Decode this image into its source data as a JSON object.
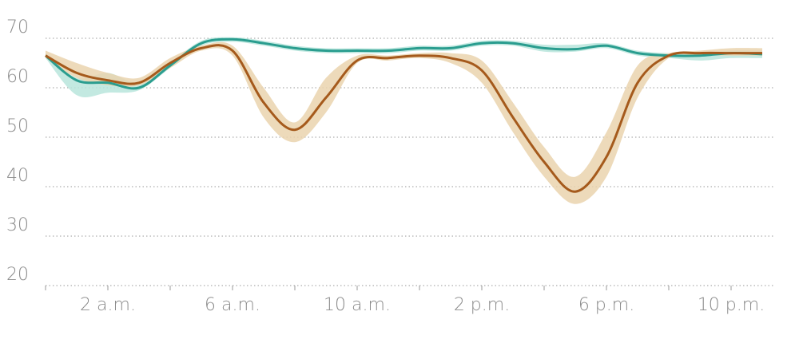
{
  "chart_data": {
    "type": "line",
    "x": [
      0,
      1,
      2,
      3,
      4,
      5,
      6,
      7,
      8,
      9,
      10,
      11,
      12,
      13,
      14,
      15,
      16,
      17,
      18,
      19,
      20,
      21,
      22,
      23
    ],
    "xlim": [
      0,
      23.4
    ],
    "xticks": [
      {
        "value": 2,
        "label": "2 a.m."
      },
      {
        "value": 6,
        "label": "6 a.m."
      },
      {
        "value": 10,
        "label": "10 a.m."
      },
      {
        "value": 14,
        "label": "2 p.m."
      },
      {
        "value": 18,
        "label": "6 p.m."
      },
      {
        "value": 22,
        "label": "10 p.m."
      }
    ],
    "xminorticks": [
      0,
      4,
      8,
      12,
      16,
      20
    ],
    "ylim": [
      20,
      70
    ],
    "yticks": [
      20,
      30,
      40,
      50,
      60,
      70
    ],
    "grid": true,
    "series": [
      {
        "color": "#2a9d8f",
        "band_color": "#b9e5dc",
        "values": [
          66.5,
          61.5,
          61,
          60,
          64.5,
          69,
          69.8,
          69,
          68,
          67.5,
          67.5,
          67.5,
          68,
          68,
          69,
          69,
          68,
          67.8,
          68.5,
          67,
          66.5,
          66.5,
          67,
          66.8
        ],
        "lower": [
          66,
          58.5,
          59,
          59.5,
          64,
          68.5,
          69.3,
          68.5,
          67.5,
          67,
          67,
          67,
          67.5,
          67.5,
          68.5,
          68.5,
          67.3,
          67.3,
          68,
          66.5,
          66,
          65.5,
          66,
          66
        ],
        "upper": [
          67,
          62,
          63,
          61,
          65,
          69.5,
          70.2,
          69.5,
          68.5,
          68,
          68,
          68,
          68.5,
          68.5,
          69.5,
          69.5,
          68.7,
          68.7,
          69,
          67.5,
          67,
          67,
          67.5,
          67.5
        ]
      },
      {
        "color": "#a55a1c",
        "band_color": "#ead3ae",
        "values": [
          66.5,
          63,
          61.5,
          61,
          65,
          68,
          67.5,
          57,
          51.5,
          58,
          65.5,
          66,
          66.5,
          66,
          63.5,
          54,
          45,
          39,
          46,
          61,
          66.5,
          67,
          67,
          67
        ],
        "lower": [
          66,
          62,
          60.5,
          60.5,
          64,
          67.5,
          66.5,
          54,
          49,
          55,
          65,
          65.5,
          66,
          65,
          61,
          51,
          42,
          36.5,
          42,
          58,
          66,
          66.5,
          66.5,
          66.5
        ],
        "upper": [
          67.5,
          65,
          63,
          62,
          66,
          68.5,
          68.5,
          60,
          53,
          62,
          66.5,
          66.5,
          67,
          67,
          65.5,
          57,
          48,
          42,
          51,
          64.5,
          67,
          67.5,
          68,
          68
        ]
      }
    ]
  }
}
